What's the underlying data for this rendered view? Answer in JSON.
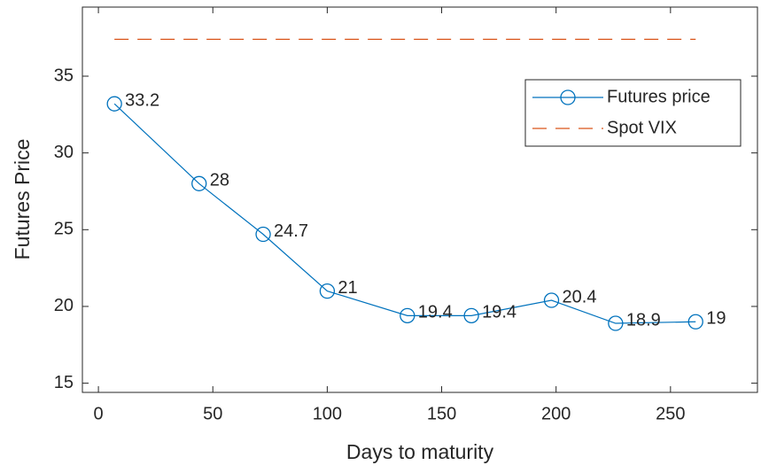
{
  "chart_data": {
    "type": "line",
    "xlabel": "Days to maturity",
    "ylabel": "Futures Price",
    "x": [
      7,
      44,
      72,
      100,
      135,
      163,
      198,
      226,
      261
    ],
    "series": [
      {
        "name": "Futures price",
        "color": "#0072BD",
        "marker": "circle",
        "values": [
          33.2,
          28,
          24.7,
          21,
          19.4,
          19.4,
          20.4,
          18.9,
          19
        ],
        "data_labels": true
      },
      {
        "name": "Spot VIX",
        "color": "#D95319",
        "dash": true,
        "values": [
          37.4,
          37.4,
          37.4,
          37.4,
          37.4,
          37.4,
          37.4,
          37.4,
          37.4
        ]
      }
    ],
    "xlim": [
      -7,
      288
    ],
    "xticks": [
      0,
      50,
      100,
      150,
      200,
      250
    ],
    "ylim": [
      14.4,
      39.5
    ],
    "yticks": [
      15,
      20,
      25,
      30,
      35
    ],
    "legend": "northeast"
  }
}
